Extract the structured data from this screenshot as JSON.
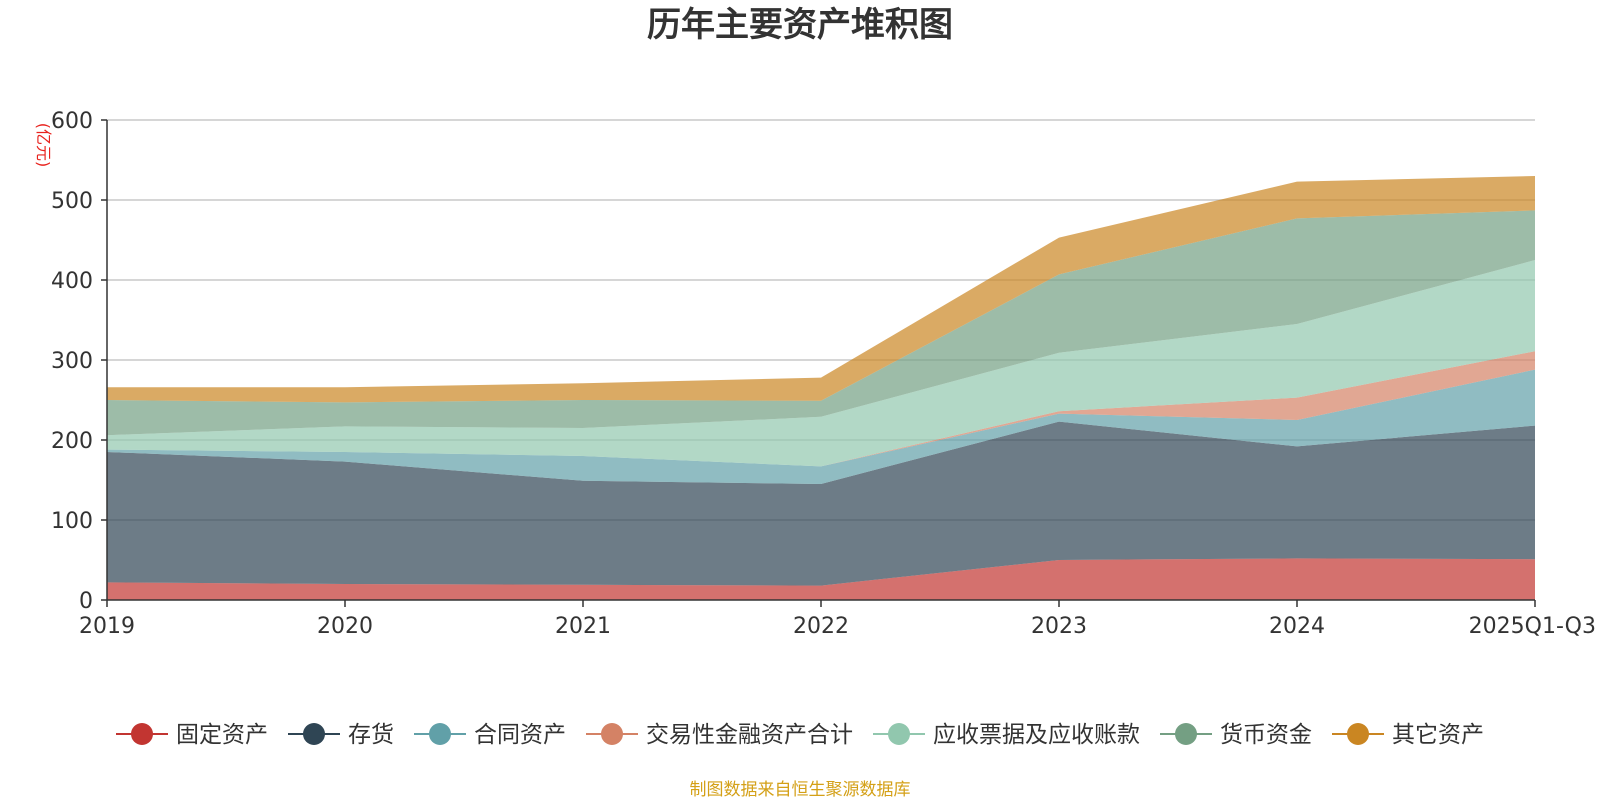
{
  "chart_data": {
    "type": "area",
    "stacked": true,
    "title": "历年主要资产堆积图",
    "ylabel": "(亿元)",
    "xlabel": "",
    "ylim": [
      0,
      600
    ],
    "yticks": [
      0,
      100,
      200,
      300,
      400,
      500,
      600
    ],
    "categories": [
      "2019",
      "2020",
      "2021",
      "2022",
      "2023",
      "2024",
      "2025Q1-Q3"
    ],
    "grid": true,
    "legend_position": "bottom",
    "series": [
      {
        "name": "固定资产",
        "color": "#c23531",
        "values": [
          22,
          20,
          19,
          18,
          50,
          52,
          51
        ]
      },
      {
        "name": "存货",
        "color": "#2f4554",
        "values": [
          163,
          153,
          130,
          127,
          173,
          140,
          167
        ]
      },
      {
        "name": "合同资产",
        "color": "#61a0a8",
        "values": [
          3,
          12,
          31,
          22,
          10,
          33,
          70
        ]
      },
      {
        "name": "交易性金融资产合计",
        "color": "#d48265",
        "values": [
          0,
          0,
          0,
          0,
          3,
          28,
          23
        ]
      },
      {
        "name": "应收票据及应收账款",
        "color": "#91c7ae",
        "values": [
          18,
          32,
          35,
          62,
          73,
          92,
          114
        ]
      },
      {
        "name": "货币资金",
        "color": "#749f83",
        "values": [
          44,
          30,
          35,
          20,
          98,
          132,
          62
        ]
      },
      {
        "name": "其它资产",
        "color": "#ca8622",
        "values": [
          16,
          19,
          21,
          29,
          46,
          46,
          43
        ]
      }
    ],
    "source": "制图数据来自恒生聚源数据库"
  }
}
